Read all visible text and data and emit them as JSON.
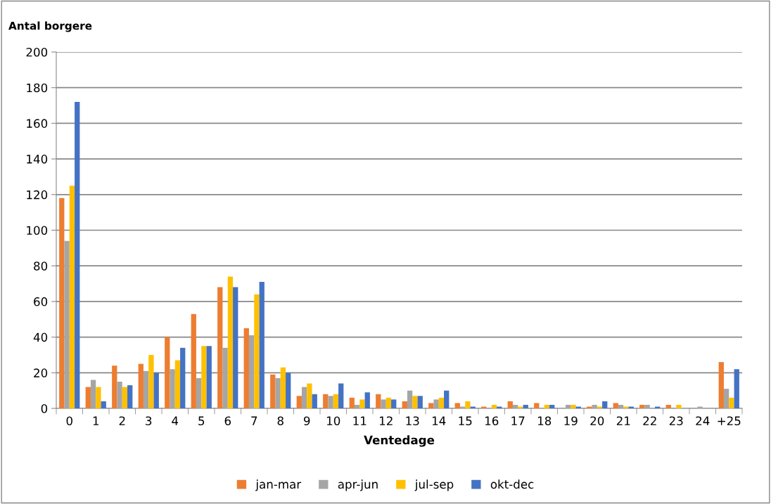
{
  "chart_data": {
    "type": "bar",
    "xlabel": "Ventedage",
    "ylabel": "Antal borgere",
    "categories": [
      "0",
      "1",
      "2",
      "3",
      "4",
      "5",
      "6",
      "7",
      "8",
      "9",
      "10",
      "11",
      "12",
      "13",
      "14",
      "15",
      "16",
      "17",
      "18",
      "19",
      "20",
      "21",
      "22",
      "23",
      "24",
      "+25"
    ],
    "series": [
      {
        "name": "jan-mar",
        "color": "#ed7d31",
        "values": [
          118,
          12,
          24,
          25,
          40,
          53,
          68,
          45,
          19,
          7,
          8,
          6,
          8,
          4,
          3,
          3,
          1,
          4,
          3,
          0,
          1,
          3,
          2,
          2,
          0,
          26
        ]
      },
      {
        "name": "apr-jun",
        "color": "#a5a5a5",
        "values": [
          94,
          16,
          15,
          21,
          22,
          17,
          34,
          41,
          17,
          12,
          7,
          2,
          5,
          10,
          5,
          1,
          0,
          2,
          0,
          2,
          2,
          2,
          2,
          0,
          1,
          11
        ]
      },
      {
        "name": "jul-sep",
        "color": "#ffc000",
        "values": [
          125,
          12,
          12,
          30,
          27,
          35,
          74,
          64,
          23,
          14,
          8,
          5,
          6,
          7,
          6,
          4,
          2,
          1,
          2,
          2,
          1,
          1,
          0,
          2,
          0,
          6
        ]
      },
      {
        "name": "okt-dec",
        "color": "#4472c4",
        "values": [
          172,
          4,
          13,
          20,
          34,
          35,
          68,
          71,
          20,
          8,
          14,
          9,
          5,
          7,
          10,
          1,
          1,
          2,
          2,
          1,
          4,
          1,
          1,
          0,
          0,
          22
        ]
      }
    ],
    "ylim": [
      0,
      200
    ],
    "yticks": [
      0,
      20,
      40,
      60,
      80,
      100,
      120,
      140,
      160,
      180,
      200
    ],
    "grid": "y",
    "legend": "bottom"
  }
}
